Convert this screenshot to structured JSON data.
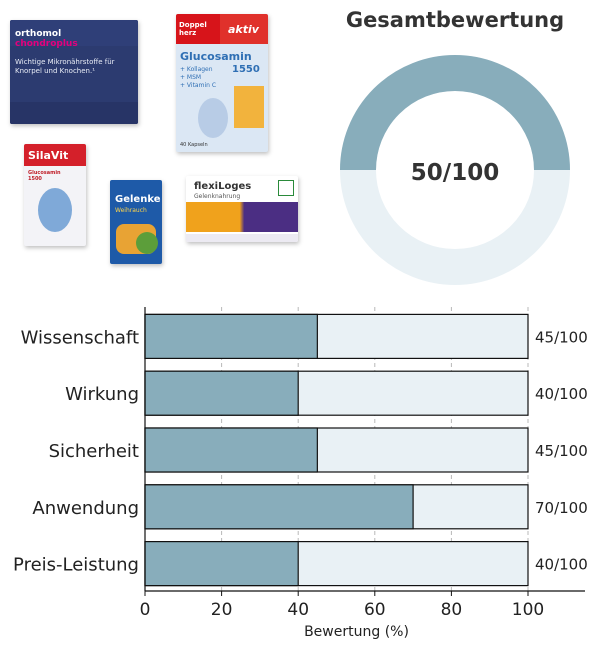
{
  "products": [
    {
      "name": "orthomol-chondroplus-pack",
      "brand": "orthomol",
      "line": "chondroplus",
      "claim": "Wichtige Mikronährstoffe für Knorpel und Knochen.¹"
    },
    {
      "name": "doppelherz-glucosamin-pack",
      "brand": "Doppel herz",
      "badge": "aktiv",
      "product": "Glucosamin",
      "strength": "1550",
      "lines": [
        "+ Kollagen",
        "+ MSM",
        "+ Vitamin C"
      ],
      "count": "40 Kapseln"
    },
    {
      "name": "silavit-glucosamin-pack",
      "brand": "SilaVit",
      "product": "Glucosamin 1500"
    },
    {
      "name": "gelenke-weihrauch-pack",
      "product": "Gelenke",
      "sub": "Weihrauch"
    },
    {
      "name": "flexiloges-pack",
      "brand": "flexiLoges",
      "product": "Gelenknahrung"
    }
  ],
  "gauge": {
    "title": "Gesamtbewertung",
    "value_label": "50/100",
    "value": 50,
    "max": 100
  },
  "colors": {
    "fill": "#88adbb",
    "track": "#e9f1f5",
    "text": "#222222"
  },
  "chart_data": {
    "type": "bar",
    "orientation": "horizontal",
    "categories": [
      "Wissenschaft",
      "Wirkung",
      "Sicherheit",
      "Anwendung",
      "Preis-Leistung"
    ],
    "values": [
      45,
      40,
      45,
      70,
      40
    ],
    "value_labels": [
      "45/100",
      "40/100",
      "45/100",
      "70/100",
      "40/100"
    ],
    "max": 100,
    "xlabel": "Bewertung (%)",
    "xlim": [
      0,
      100
    ],
    "xticks": [
      "0",
      "20",
      "40",
      "60",
      "80",
      "100"
    ],
    "grid": true
  }
}
